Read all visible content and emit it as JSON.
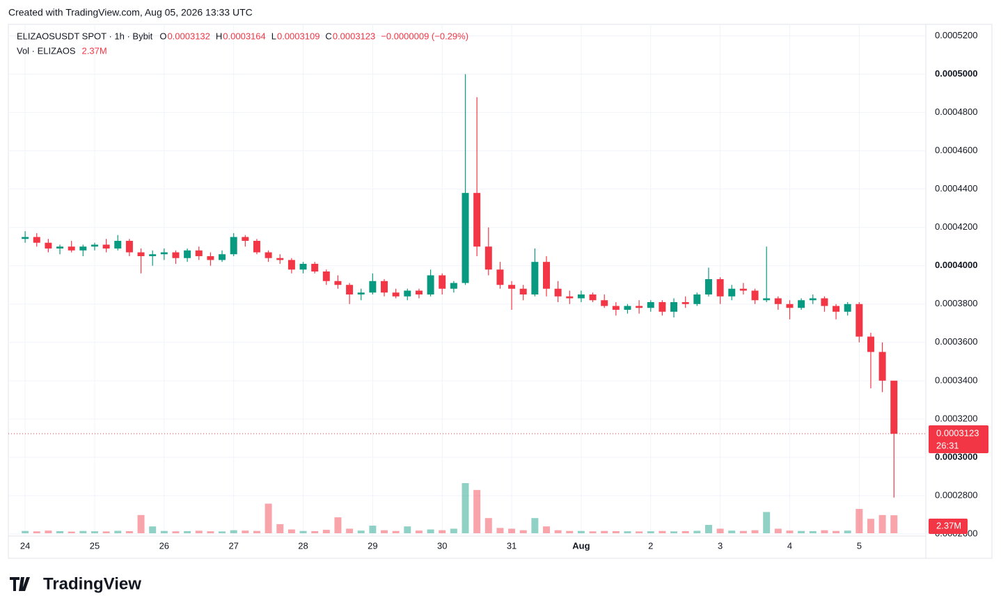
{
  "footer": "Created with TradingView.com, Aug 05, 2026 13:33 UTC",
  "logo": "TradingView",
  "chart_data": {
    "type": "candlestick",
    "title": "ELIZAOSUSDT SPOT · 1h · Bybit",
    "ohlc_header": [
      {
        "label": "O",
        "value": 0.0003132
      },
      {
        "label": "H",
        "value": 0.0003164
      },
      {
        "label": "L",
        "value": 0.0003109
      },
      {
        "label": "C",
        "value": 0.0003123
      }
    ],
    "change_label": "−0.0000009 (−0.29%)",
    "up_color": "#089981",
    "down_color": "#f23645",
    "grid": true,
    "xlim": [
      -5.8,
      311
    ],
    "xticks": [
      {
        "value": 0,
        "label": "24"
      },
      {
        "value": 24,
        "label": "25"
      },
      {
        "value": 48,
        "label": "26"
      },
      {
        "value": 72,
        "label": "27"
      },
      {
        "value": 96,
        "label": "28"
      },
      {
        "value": 120,
        "label": "29"
      },
      {
        "value": 144,
        "label": "30"
      },
      {
        "value": 168,
        "label": "31"
      },
      {
        "value": 192,
        "label": "Aug"
      },
      {
        "value": 216,
        "label": "2"
      },
      {
        "value": 240,
        "label": "3"
      },
      {
        "value": 264,
        "label": "4"
      },
      {
        "value": 288,
        "label": "5"
      }
    ],
    "ylim": [
      0.000248,
      0.000526
    ],
    "yticks": [
      {
        "value": 0.00026,
        "label": "0.0002600"
      },
      {
        "value": 0.00028,
        "label": "0.0002800"
      },
      {
        "value": 0.0003,
        "label": "0.0003000"
      },
      {
        "value": 0.00032,
        "label": "0.0003200"
      },
      {
        "value": 0.00034,
        "label": "0.0003400"
      },
      {
        "value": 0.00036,
        "label": "0.0003600"
      },
      {
        "value": 0.00038,
        "label": "0.0003800"
      },
      {
        "value": 0.0004,
        "label": "0.0004000"
      },
      {
        "value": 0.00042,
        "label": "0.0004200"
      },
      {
        "value": 0.00044,
        "label": "0.0004400"
      },
      {
        "value": 0.00046,
        "label": "0.0004600"
      },
      {
        "value": 0.00048,
        "label": "0.0004800"
      },
      {
        "value": 0.0005,
        "label": "0.0005000"
      },
      {
        "value": 0.00052,
        "label": "0.0005200"
      }
    ],
    "last_price": 0.0003123,
    "countdown": "26:31",
    "x": [
      0,
      4,
      8,
      12,
      16,
      20,
      24,
      28,
      32,
      36,
      40,
      44,
      48,
      52,
      56,
      60,
      64,
      68,
      72,
      76,
      80,
      84,
      88,
      92,
      96,
      100,
      104,
      108,
      112,
      116,
      120,
      124,
      128,
      132,
      136,
      140,
      144,
      148,
      152,
      156,
      160,
      164,
      168,
      172,
      176,
      180,
      184,
      188,
      192,
      196,
      200,
      204,
      208,
      212,
      216,
      220,
      224,
      228,
      232,
      236,
      240,
      244,
      248,
      252,
      256,
      260,
      264,
      268,
      272,
      276,
      280,
      284,
      288,
      292,
      296,
      300
    ],
    "ohlc": [
      [
        0.000414,
        0.000418,
        0.000412,
        0.000415
      ],
      [
        0.000415,
        0.000417,
        0.00041,
        0.000412
      ],
      [
        0.000412,
        0.000414,
        0.000407,
        0.000409
      ],
      [
        0.000409,
        0.000411,
        0.000406,
        0.00041
      ],
      [
        0.00041,
        0.000413,
        0.000407,
        0.000408
      ],
      [
        0.000408,
        0.000411,
        0.000405,
        0.00041
      ],
      [
        0.00041,
        0.000412,
        0.000408,
        0.000411
      ],
      [
        0.000411,
        0.000414,
        0.000407,
        0.000409
      ],
      [
        0.000409,
        0.000416,
        0.000408,
        0.000413
      ],
      [
        0.000413,
        0.000414,
        0.000405,
        0.000407
      ],
      [
        0.000407,
        0.000409,
        0.000396,
        0.000405
      ],
      [
        0.000405,
        0.000408,
        0.0004,
        0.000406
      ],
      [
        0.000406,
        0.000409,
        0.000403,
        0.000407
      ],
      [
        0.000407,
        0.000408,
        0.000401,
        0.000404
      ],
      [
        0.000404,
        0.000409,
        0.000402,
        0.000408
      ],
      [
        0.000408,
        0.00041,
        0.000403,
        0.000405
      ],
      [
        0.000405,
        0.000407,
        0.0004,
        0.000403
      ],
      [
        0.000403,
        0.000408,
        0.000402,
        0.000406
      ],
      [
        0.000406,
        0.000417,
        0.000405,
        0.000415
      ],
      [
        0.000415,
        0.000416,
        0.00041,
        0.000413
      ],
      [
        0.000413,
        0.000414,
        0.000406,
        0.000407
      ],
      [
        0.000407,
        0.000408,
        0.000402,
        0.000404
      ],
      [
        0.000404,
        0.000406,
        0.000401,
        0.000403
      ],
      [
        0.000403,
        0.000404,
        0.000396,
        0.000398
      ],
      [
        0.000398,
        0.000402,
        0.000396,
        0.000401
      ],
      [
        0.000401,
        0.000402,
        0.000396,
        0.000397
      ],
      [
        0.000397,
        0.000398,
        0.00039,
        0.000392
      ],
      [
        0.000392,
        0.000395,
        0.000388,
        0.00039
      ],
      [
        0.00039,
        0.000391,
        0.00038,
        0.000385
      ],
      [
        0.000385,
        0.000388,
        0.000382,
        0.000386
      ],
      [
        0.000386,
        0.000396,
        0.000385,
        0.000392
      ],
      [
        0.000392,
        0.000393,
        0.000384,
        0.000386
      ],
      [
        0.000386,
        0.000388,
        0.000383,
        0.000384
      ],
      [
        0.000384,
        0.000388,
        0.000382,
        0.000387
      ],
      [
        0.000387,
        0.000388,
        0.000383,
        0.000385
      ],
      [
        0.000385,
        0.000398,
        0.000384,
        0.000395
      ],
      [
        0.000395,
        0.000396,
        0.000385,
        0.000388
      ],
      [
        0.000388,
        0.000392,
        0.000386,
        0.000391
      ],
      [
        0.000391,
        0.0005,
        0.00039,
        0.000438
      ],
      [
        0.000438,
        0.000488,
        0.000405,
        0.00041
      ],
      [
        0.00041,
        0.00042,
        0.000395,
        0.000398
      ],
      [
        0.000398,
        0.000402,
        0.000388,
        0.00039
      ],
      [
        0.00039,
        0.000392,
        0.000377,
        0.000388
      ],
      [
        0.000388,
        0.00039,
        0.000382,
        0.000385
      ],
      [
        0.000385,
        0.000409,
        0.000384,
        0.000402
      ],
      [
        0.000402,
        0.000405,
        0.000384,
        0.000388
      ],
      [
        0.000388,
        0.000392,
        0.000381,
        0.000384
      ],
      [
        0.000384,
        0.000387,
        0.00038,
        0.000383
      ],
      [
        0.000383,
        0.000387,
        0.000381,
        0.000385
      ],
      [
        0.000385,
        0.000386,
        0.000381,
        0.000382
      ],
      [
        0.000382,
        0.000385,
        0.000378,
        0.000379
      ],
      [
        0.000379,
        0.000381,
        0.000374,
        0.000377
      ],
      [
        0.000377,
        0.00038,
        0.000375,
        0.000379
      ],
      [
        0.000379,
        0.000382,
        0.000375,
        0.000378
      ],
      [
        0.000378,
        0.000382,
        0.000376,
        0.000381
      ],
      [
        0.000381,
        0.000382,
        0.000374,
        0.000376
      ],
      [
        0.000376,
        0.000383,
        0.000373,
        0.000381
      ],
      [
        0.000381,
        0.000384,
        0.000378,
        0.00038
      ],
      [
        0.00038,
        0.000386,
        0.000379,
        0.000385
      ],
      [
        0.000385,
        0.000399,
        0.000384,
        0.000393
      ],
      [
        0.000393,
        0.000394,
        0.00038,
        0.000384
      ],
      [
        0.000384,
        0.00039,
        0.000382,
        0.000388
      ],
      [
        0.000388,
        0.000391,
        0.000385,
        0.000387
      ],
      [
        0.000387,
        0.000388,
        0.00038,
        0.000382
      ],
      [
        0.000382,
        0.00041,
        0.000381,
        0.000383
      ],
      [
        0.000383,
        0.000384,
        0.000377,
        0.00038
      ],
      [
        0.00038,
        0.000382,
        0.000372,
        0.000378
      ],
      [
        0.000378,
        0.000383,
        0.000377,
        0.000382
      ],
      [
        0.000382,
        0.000385,
        0.00038,
        0.000383
      ],
      [
        0.000383,
        0.000384,
        0.000376,
        0.000379
      ],
      [
        0.000379,
        0.00038,
        0.000372,
        0.000376
      ],
      [
        0.000376,
        0.000381,
        0.000374,
        0.00038
      ],
      [
        0.00038,
        0.000381,
        0.00036,
        0.000363
      ],
      [
        0.000363,
        0.000365,
        0.000336,
        0.000355
      ],
      [
        0.000355,
        0.00036,
        0.000334,
        0.00034
      ],
      [
        0.00034,
        0.00034,
        0.000279,
        0.0003123
      ]
    ],
    "volume": {
      "name": "Vol · ELIZAOS",
      "last_label": "2.37M",
      "values": [
        300000,
        250000,
        350000,
        280000,
        220000,
        300000,
        260000,
        240000,
        320000,
        280000,
        2400000,
        900000,
        300000,
        250000,
        280000,
        330000,
        260000,
        240000,
        400000,
        350000,
        300000,
        3900000,
        1200000,
        500000,
        300000,
        280000,
        450000,
        2100000,
        600000,
        350000,
        1000000,
        400000,
        300000,
        900000,
        350000,
        500000,
        400000,
        600000,
        6600000,
        5700000,
        2000000,
        700000,
        600000,
        400000,
        2000000,
        900000,
        400000,
        300000,
        300000,
        250000,
        300000,
        280000,
        260000,
        240000,
        260000,
        300000,
        250000,
        280000,
        320000,
        1100000,
        600000,
        350000,
        300000,
        400000,
        2800000,
        600000,
        350000,
        300000,
        280000,
        400000,
        300000,
        350000,
        3200000,
        1900000,
        2400000,
        2370000
      ]
    }
  }
}
